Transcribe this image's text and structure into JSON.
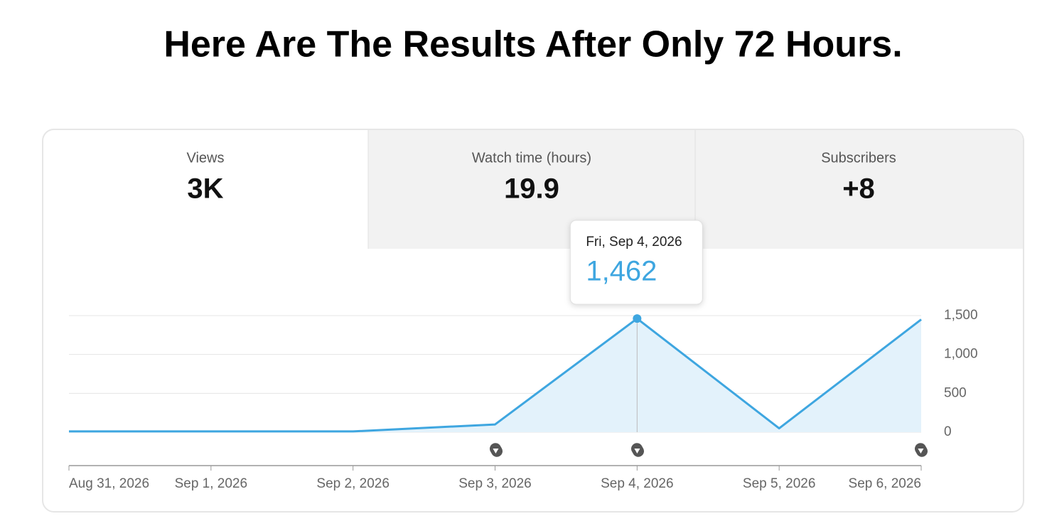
{
  "header": {
    "title": "Here Are The Results After Only 72 Hours."
  },
  "tabs": [
    {
      "label": "Views",
      "value": "3K"
    },
    {
      "label": "Watch time (hours)",
      "value": "19.9"
    },
    {
      "label": "Subscribers",
      "value": "+8"
    }
  ],
  "chart_data": {
    "type": "line",
    "categories": [
      "Aug 31, 2026",
      "Sep 1, 2026",
      "Sep 2, 2026",
      "Sep 3, 2026",
      "Sep 4, 2026",
      "Sep 5, 2026",
      "Sep 6, 2026"
    ],
    "values": [
      10,
      10,
      10,
      100,
      1462,
      50,
      1450
    ],
    "value_labels": [
      null,
      null,
      null,
      null,
      "1,462",
      null,
      null
    ],
    "tooltip_title": "Fri, Sep 4, 2026",
    "color": "#3ea6e0",
    "ylim": [
      0,
      1500
    ],
    "yticks": [
      0,
      500,
      {
        "value": 1000,
        "label": "1,000"
      },
      {
        "value": 1500,
        "label": "1,500"
      }
    ],
    "grid": true
  }
}
